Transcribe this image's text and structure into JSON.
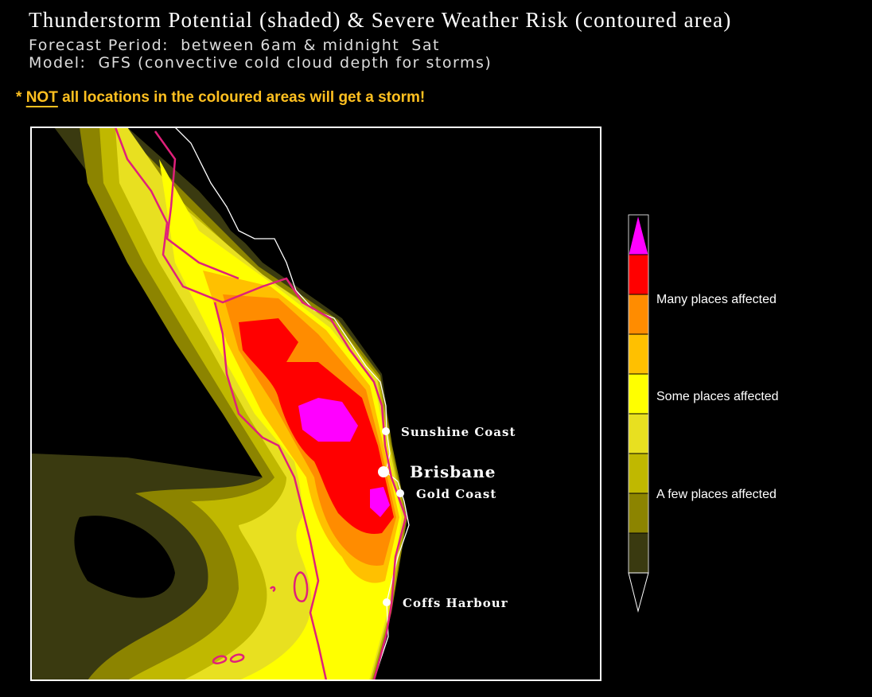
{
  "header": {
    "title": "Thunderstorm Potential (shaded) & Severe Weather Risk (contoured area)",
    "lines": [
      "Forecast Period:  between 6am & midnight  Sat",
      "Model:  GFS (convective cold cloud depth for storms)"
    ]
  },
  "note": {
    "prefix": "*",
    "emphasis": "NOT",
    "text": "all locations in the coloured areas will get a storm!"
  },
  "map": {
    "places": [
      "Sunshine Coast",
      "Brisbane",
      "Gold Coast",
      "Coffs Harbour"
    ]
  },
  "legend": {
    "labels": [
      "Many places affected",
      "Some places affected",
      "A few places affected"
    ]
  }
}
